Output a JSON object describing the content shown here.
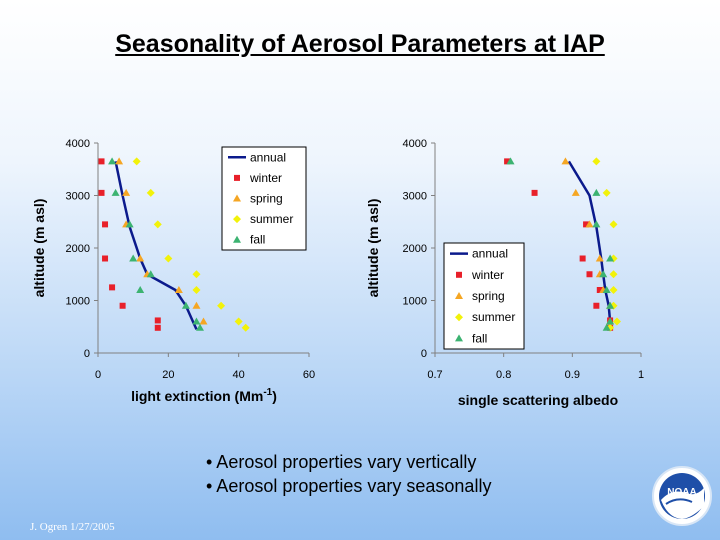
{
  "slide": {
    "title": "Seasonality of Aerosol Parameters at IAP",
    "bullets": [
      "• Aerosol properties vary vertically",
      "• Aerosol properties vary seasonally"
    ],
    "footer": "J. Ogren  1/27/2005",
    "logo_text": "NOAA"
  },
  "colors": {
    "annual": "#0b1a8c",
    "winter": "#e8202a",
    "spring": "#f5a623",
    "summer": "#f2f20a",
    "fall": "#3cb371"
  },
  "chart_data": [
    {
      "type": "scatter",
      "title": "",
      "xlabel": "light extinction (Mm",
      "xlabel_sup": "-1",
      "xlabel_suffix": ")",
      "ylabel": "altitude (m asl)",
      "xlim": [
        0,
        60
      ],
      "ylim": [
        0,
        4000
      ],
      "xticks": [
        0,
        20,
        40,
        60
      ],
      "yticks": [
        0,
        1000,
        2000,
        3000,
        4000
      ],
      "legend": "top-right",
      "series": [
        {
          "name": "annual",
          "kind": "line",
          "points": [
            [
              28,
              450
            ],
            [
              27,
              600
            ],
            [
              25,
              900
            ],
            [
              22,
              1200
            ],
            [
              14,
              1500
            ],
            [
              12,
              1800
            ],
            [
              9,
              2400
            ],
            [
              7,
              3000
            ],
            [
              5,
              3650
            ]
          ]
        },
        {
          "name": "winter",
          "kind": "square",
          "points": [
            [
              1,
              3650
            ],
            [
              1,
              3050
            ],
            [
              2,
              2450
            ],
            [
              2,
              1800
            ],
            [
              4,
              1250
            ],
            [
              7,
              900
            ],
            [
              17,
              620
            ],
            [
              17,
              480
            ]
          ]
        },
        {
          "name": "spring",
          "kind": "triangle",
          "points": [
            [
              6,
              3650
            ],
            [
              8,
              3050
            ],
            [
              8,
              2450
            ],
            [
              12,
              1800
            ],
            [
              14,
              1500
            ],
            [
              23,
              1200
            ],
            [
              28,
              900
            ],
            [
              30,
              600
            ]
          ]
        },
        {
          "name": "summer",
          "kind": "diamond",
          "points": [
            [
              11,
              3650
            ],
            [
              15,
              3050
            ],
            [
              17,
              2450
            ],
            [
              20,
              1800
            ],
            [
              28,
              1500
            ],
            [
              28,
              1200
            ],
            [
              35,
              900
            ],
            [
              40,
              600
            ],
            [
              42,
              480
            ]
          ]
        },
        {
          "name": "fall",
          "kind": "triangle",
          "points": [
            [
              4,
              3650
            ],
            [
              5,
              3050
            ],
            [
              9,
              2450
            ],
            [
              10,
              1800
            ],
            [
              15,
              1500
            ],
            [
              12,
              1200
            ],
            [
              25,
              900
            ],
            [
              28,
              600
            ],
            [
              29,
              480
            ]
          ]
        }
      ]
    },
    {
      "type": "scatter",
      "title": "",
      "xlabel": "single scattering albedo",
      "ylabel": "altitude (m asl)",
      "xlim": [
        0.7,
        1
      ],
      "ylim": [
        0,
        4000
      ],
      "xticks": [
        0.7,
        0.8,
        0.9,
        1
      ],
      "yticks": [
        0,
        1000,
        2000,
        3000,
        4000
      ],
      "legend": "bottom-left",
      "series": [
        {
          "name": "annual",
          "kind": "line",
          "points": [
            [
              0.955,
              450
            ],
            [
              0.955,
              600
            ],
            [
              0.953,
              900
            ],
            [
              0.948,
              1200
            ],
            [
              0.945,
              1500
            ],
            [
              0.942,
              1800
            ],
            [
              0.935,
              2400
            ],
            [
              0.925,
              3000
            ],
            [
              0.895,
              3650
            ]
          ]
        },
        {
          "name": "winter",
          "kind": "square",
          "points": [
            [
              0.805,
              3650
            ],
            [
              0.845,
              3050
            ],
            [
              0.92,
              2450
            ],
            [
              0.915,
              1800
            ],
            [
              0.925,
              1500
            ],
            [
              0.94,
              1200
            ],
            [
              0.935,
              900
            ],
            [
              0.955,
              620
            ],
            [
              0.955,
              480
            ]
          ]
        },
        {
          "name": "spring",
          "kind": "triangle",
          "points": [
            [
              0.89,
              3650
            ],
            [
              0.905,
              3050
            ],
            [
              0.925,
              2450
            ],
            [
              0.94,
              1800
            ],
            [
              0.94,
              1500
            ],
            [
              0.945,
              1200
            ],
            [
              0.955,
              900
            ],
            [
              0.955,
              600
            ]
          ]
        },
        {
          "name": "summer",
          "kind": "diamond",
          "points": [
            [
              0.935,
              3650
            ],
            [
              0.95,
              3050
            ],
            [
              0.96,
              2450
            ],
            [
              0.96,
              1800
            ],
            [
              0.96,
              1500
            ],
            [
              0.96,
              1200
            ],
            [
              0.96,
              900
            ],
            [
              0.965,
              600
            ],
            [
              0.955,
              480
            ]
          ]
        },
        {
          "name": "fall",
          "kind": "triangle",
          "points": [
            [
              0.81,
              3650
            ],
            [
              0.935,
              3050
            ],
            [
              0.935,
              2450
            ],
            [
              0.955,
              1800
            ],
            [
              0.945,
              1500
            ],
            [
              0.95,
              1200
            ],
            [
              0.955,
              900
            ],
            [
              0.955,
              600
            ],
            [
              0.95,
              480
            ]
          ]
        }
      ]
    }
  ]
}
